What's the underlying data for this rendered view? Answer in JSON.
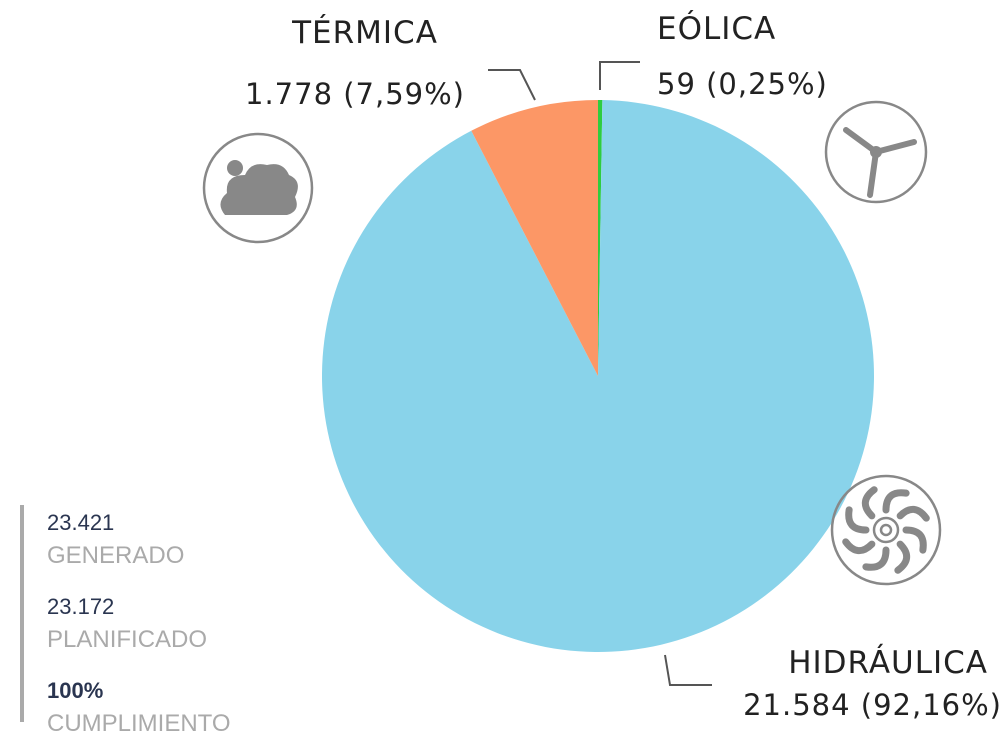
{
  "chart_data": {
    "type": "pie",
    "categories": [
      "EÓLICA",
      "HIDRÁULICA",
      "TÉRMICA"
    ],
    "values": [
      59,
      21584,
      1778
    ],
    "value_labels": [
      "59 (0,25%)",
      "21.584 (92,16%)",
      "1.778 (7,59%)"
    ],
    "colors": [
      "#2ecc40",
      "#89d3ea",
      "#fc9766"
    ]
  },
  "summary": [
    {
      "value": "23.421",
      "label": "GENERADO"
    },
    {
      "value": "23.172",
      "label": "PLANIFICADO"
    },
    {
      "value": "100%",
      "label": "CUMPLIMIENTO"
    }
  ]
}
